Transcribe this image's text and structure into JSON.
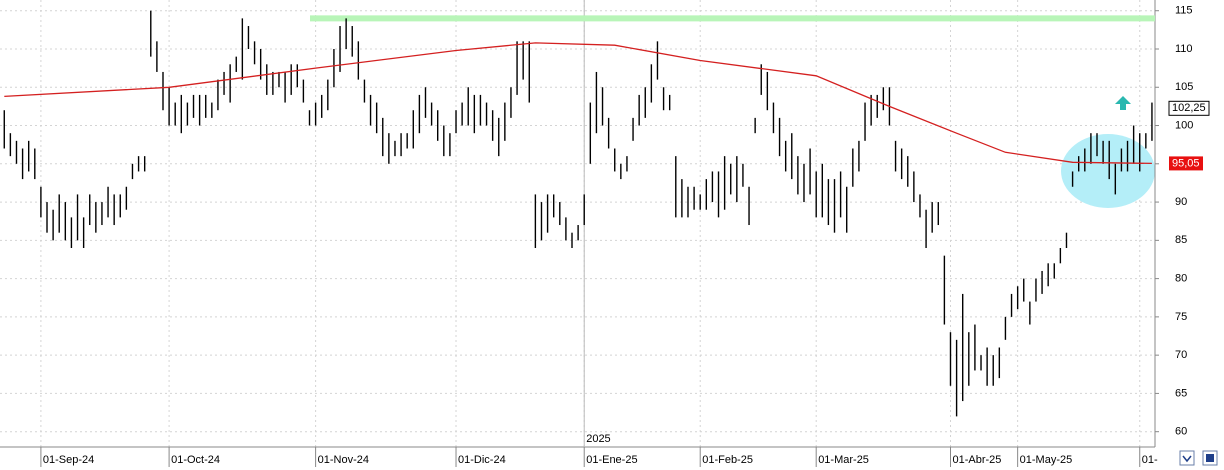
{
  "chart_data": {
    "type": "hilo",
    "color": "#000000",
    "low": [
      97,
      96,
      95,
      93,
      94,
      93,
      88,
      86,
      85,
      86,
      85,
      84,
      85,
      84,
      87,
      86,
      87,
      88,
      87,
      88,
      89,
      93,
      94,
      94,
      109,
      107,
      102,
      100,
      100,
      99,
      100,
      101,
      100,
      101,
      101,
      102,
      104,
      103,
      107,
      106,
      110,
      108,
      106,
      104,
      104,
      105,
      103,
      104,
      105,
      103,
      100,
      100,
      101,
      102,
      105,
      107,
      110,
      109,
      106,
      103,
      100,
      99,
      96,
      95,
      96,
      96,
      97,
      97,
      99,
      101,
      100,
      98,
      96,
      96,
      99,
      100,
      100,
      99,
      100,
      100,
      98,
      96,
      98,
      101,
      104,
      106,
      103,
      84,
      85,
      86,
      88,
      87,
      85,
      84,
      85,
      87,
      95,
      99,
      100,
      97,
      94,
      93,
      94,
      98,
      100,
      101,
      103,
      106,
      102,
      102,
      88,
      88,
      88,
      89,
      89,
      89,
      90,
      88,
      89,
      91,
      90,
      92,
      87,
      99,
      104,
      102,
      99,
      96,
      94,
      93,
      91,
      90,
      91,
      88,
      88,
      87,
      86,
      88,
      86,
      92,
      94,
      98,
      100,
      101,
      102,
      100,
      94,
      93,
      92,
      90,
      88,
      84,
      86,
      87,
      74,
      66,
      62,
      64,
      66,
      68,
      68,
      66,
      66,
      67,
      72,
      75,
      76,
      77,
      74,
      77,
      78,
      79,
      80,
      82,
      84,
      92,
      94,
      94,
      95,
      96,
      95,
      93,
      91,
      94,
      94,
      95,
      94,
      97,
      98
    ],
    "high": [
      102,
      99,
      98,
      97,
      98,
      97,
      92,
      90,
      89,
      91,
      90,
      88,
      91,
      88,
      91,
      90,
      90,
      92,
      91,
      91,
      92,
      95,
      96,
      96,
      115,
      111,
      107,
      105,
      103,
      104,
      103,
      104,
      104,
      104,
      103,
      106,
      107,
      108,
      109,
      114,
      113,
      111,
      110,
      108,
      107,
      107,
      107,
      108,
      108,
      106,
      102,
      103,
      104,
      106,
      110,
      113,
      114,
      113,
      111,
      106,
      104,
      103,
      101,
      99,
      98,
      99,
      99,
      102,
      104,
      105,
      103,
      102,
      100,
      99,
      102,
      103,
      105,
      104,
      104,
      103,
      102,
      101,
      103,
      105,
      111,
      111,
      111,
      91,
      90,
      91,
      91,
      90,
      88,
      86,
      87,
      91,
      103,
      107,
      105,
      101,
      97,
      95,
      96,
      101,
      104,
      105,
      108,
      111,
      105,
      104,
      96,
      93,
      92,
      92,
      91,
      93,
      94,
      94,
      96,
      95,
      96,
      95,
      92,
      101,
      108,
      107,
      103,
      101,
      98,
      99,
      96,
      95,
      97,
      94,
      95,
      93,
      93,
      94,
      92,
      97,
      98,
      103,
      104,
      104,
      105,
      105,
      98,
      97,
      96,
      94,
      91,
      89,
      90,
      90,
      83,
      73,
      72,
      78,
      73,
      74,
      70,
      71,
      70,
      71,
      75,
      78,
      79,
      80,
      77,
      80,
      81,
      82,
      82,
      84,
      86,
      94,
      96,
      97,
      99,
      99,
      98,
      98,
      95,
      97,
      98,
      100,
      99,
      99,
      103
    ],
    "moving_average": {
      "color": "#d42020",
      "x": [
        0,
        27,
        51,
        74,
        87,
        100,
        114,
        133,
        145,
        156,
        164,
        175,
        188
      ],
      "values": [
        103.8,
        105,
        107.5,
        109.8,
        110.8,
        110.5,
        108.5,
        106.5,
        102.5,
        99,
        96.5,
        95.2,
        95.05
      ]
    },
    "resistance": {
      "value": 114,
      "color": "#b8f5b8"
    },
    "last_price": {
      "value": 102.25,
      "label": "102,25"
    },
    "ma_last": {
      "value": 95.05,
      "label": "95,05",
      "color": "#e81010"
    },
    "year_tick": {
      "value": 95,
      "label": "2025"
    },
    "xlim": [
      -0.7,
      188.5
    ],
    "ylim": [
      58,
      116.4
    ],
    "yticks": [
      60,
      65,
      70,
      75,
      80,
      85,
      90,
      95,
      100,
      105,
      110,
      115
    ],
    "xticks": [
      {
        "value": 6,
        "label": "01-Sep-24"
      },
      {
        "value": 27,
        "label": "01-Oct-24"
      },
      {
        "value": 51,
        "label": "01-Nov-24"
      },
      {
        "value": 74,
        "label": "01-Dic-24"
      },
      {
        "value": 95,
        "label": "01-Ene-25"
      },
      {
        "value": 114,
        "label": "01-Feb-25"
      },
      {
        "value": 133,
        "label": "01-Mar-25"
      },
      {
        "value": 155,
        "label": "01-Abr-25"
      },
      {
        "value": 166,
        "label": "01-May-25"
      },
      {
        "value": 186,
        "label": "01-"
      }
    ],
    "grid": true
  }
}
